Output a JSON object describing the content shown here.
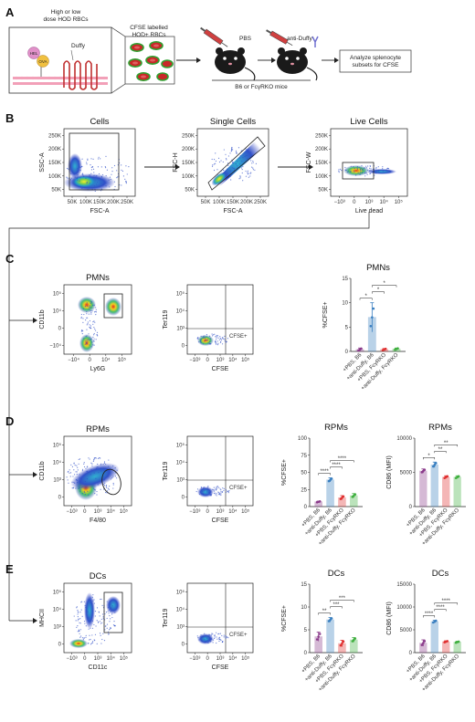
{
  "panels": {
    "A": {
      "label": "A",
      "rbc_text": "High or low\ndose HOD RBCs",
      "hel": "HEL",
      "ova": "OVA",
      "duffy": "Duffy",
      "cfse_text": "CFSE labelled\nHOD+ RBCs",
      "pbs": "PBS",
      "anti_duffy": "anti-Duffy",
      "mice": "B6 or FcγRKO mice",
      "analyze": "Analyze splenocyte\nsubsets for CFSE"
    },
    "B": {
      "label": "B",
      "plots": [
        {
          "title": "Cells",
          "xlabel": "FSC-A",
          "ylabel": "SSC-A",
          "xticks": [
            "50K",
            "100K",
            "150K",
            "200K",
            "250K"
          ],
          "yticks": [
            "250K",
            "200K",
            "150K",
            "100K",
            "50K"
          ]
        },
        {
          "title": "Single Cells",
          "xlabel": "FSC-A",
          "ylabel": "FSC-H",
          "xticks": [
            "50K",
            "100K",
            "150K",
            "200K",
            "250K"
          ],
          "yticks": [
            "250K",
            "200K",
            "150K",
            "100K",
            "50K"
          ]
        },
        {
          "title": "Live Cells",
          "xlabel": "Live dead",
          "ylabel": "FSC-W",
          "xticks": [
            "−10³",
            "0",
            "10³",
            "10⁴",
            "10⁵"
          ],
          "yticks": [
            "250K",
            "200K",
            "150K",
            "100K",
            "50K"
          ]
        }
      ]
    },
    "C": {
      "label": "C",
      "gate_plot": {
        "title": "PMNs",
        "xlabel": "Ly6G",
        "ylabel": "CD11b",
        "xticks": [
          "−10⁴",
          "0",
          "10⁴",
          "10⁵"
        ],
        "yticks": [
          "10⁵",
          "10⁴",
          "0",
          "−10⁴"
        ]
      },
      "cfse_plot": {
        "xlabel": "CFSE",
        "ylabel": "Ter119",
        "gate_label": "CFSE+",
        "xticks": [
          "−10³",
          "0",
          "10³",
          "10⁴",
          "10⁵"
        ],
        "yticks": [
          "10⁵",
          "10⁴",
          "10³",
          "0"
        ]
      }
    },
    "D": {
      "label": "D",
      "gate_plot": {
        "title": "RPMs",
        "xlabel": "F4/80",
        "ylabel": "CD11b",
        "xticks": [
          "−10³",
          "0",
          "10³",
          "10⁴",
          "10⁵"
        ],
        "yticks": [
          "10⁵",
          "10⁴",
          "10³",
          "0"
        ]
      },
      "cfse_plot": {
        "xlabel": "CFSE",
        "ylabel": "Ter119",
        "gate_label": "CFSE+",
        "xticks": [
          "−10³",
          "0",
          "10³",
          "10⁴",
          "10⁵"
        ],
        "yticks": [
          "10⁵",
          "10⁴",
          "10³",
          "0"
        ]
      }
    },
    "E": {
      "label": "E",
      "gate_plot": {
        "title": "DCs",
        "xlabel": "CD11c",
        "ylabel": "MHCII",
        "xticks": [
          "−10³",
          "0",
          "10³",
          "10⁴",
          "10⁵"
        ],
        "yticks": [
          "10⁵",
          "10⁴",
          "10³",
          "0"
        ]
      },
      "cfse_plot": {
        "xlabel": "CFSE",
        "ylabel": "Ter119",
        "gate_label": "CFSE+",
        "xticks": [
          "−10³",
          "0",
          "10³",
          "10⁴",
          "10⁵"
        ],
        "yticks": [
          "10⁵",
          "10⁴",
          "10³",
          "0"
        ]
      }
    }
  },
  "colors": {
    "b6_pbs": "#8a3a8a",
    "b6_anti": "#3a7fc0",
    "ko_pbs": "#e03030",
    "ko_anti": "#40b040"
  },
  "chart_data": [
    {
      "type": "bar",
      "panel": "C",
      "title": "PMNs",
      "ylabel": "%CFSE+",
      "categories": [
        "+PBS, B6",
        "+anti-Duffy, B6",
        "+PBS, FcγRKO",
        "+anti-Duffy, FcγRKO"
      ],
      "values": [
        0.4,
        7.0,
        0.4,
        0.5
      ],
      "errors": [
        0.3,
        3.0,
        0.2,
        0.2
      ],
      "ylim": [
        0,
        15
      ],
      "yticks": [
        0,
        5,
        10,
        15
      ],
      "significance": [
        {
          "from": 0,
          "to": 1,
          "label": "*"
        },
        {
          "from": 1,
          "to": 2,
          "label": "*"
        },
        {
          "from": 1,
          "to": 3,
          "label": "*"
        }
      ]
    },
    {
      "type": "bar",
      "panel": "D",
      "title": "RPMs",
      "ylabel": "%CFSE+",
      "categories": [
        "+PBS, B6",
        "+anti-Duffy, B6",
        "+PBS, FcγRKO",
        "+anti-Duffy, FcγRKO"
      ],
      "values": [
        7,
        39,
        13,
        16
      ],
      "errors": [
        1,
        3,
        3,
        3
      ],
      "ylim": [
        0,
        100
      ],
      "yticks": [
        0,
        25,
        50,
        75,
        100
      ],
      "significance": [
        {
          "from": 0,
          "to": 1,
          "label": "****"
        },
        {
          "from": 1,
          "to": 2,
          "label": "****"
        },
        {
          "from": 1,
          "to": 3,
          "label": "****"
        }
      ]
    },
    {
      "type": "bar",
      "panel": "D",
      "title": "RPMs",
      "ylabel": "CD86 (MFI)",
      "categories": [
        "+PBS, B6",
        "+anti-Duffy, B6",
        "+PBS, FcγRKO",
        "+anti-Duffy, FcγRKO"
      ],
      "values": [
        5200,
        6100,
        4300,
        4300
      ],
      "errors": [
        300,
        400,
        200,
        200
      ],
      "ylim": [
        0,
        10000
      ],
      "yticks": [
        0,
        5000,
        10000
      ],
      "significance": [
        {
          "from": 0,
          "to": 1,
          "label": "*"
        },
        {
          "from": 1,
          "to": 2,
          "label": "**"
        },
        {
          "from": 1,
          "to": 3,
          "label": "**"
        }
      ]
    },
    {
      "type": "bar",
      "panel": "E",
      "title": "DCs",
      "ylabel": "%CFSE+",
      "categories": [
        "+PBS, B6",
        "+anti-Duffy, B6",
        "+PBS, FcγRKO",
        "+anti-Duffy, FcγRKO"
      ],
      "values": [
        3.5,
        7.2,
        2.0,
        2.8
      ],
      "errors": [
        1.0,
        0.5,
        0.7,
        0.5
      ],
      "ylim": [
        0,
        15
      ],
      "yticks": [
        0,
        5,
        10,
        15
      ],
      "significance": [
        {
          "from": 0,
          "to": 1,
          "label": "**"
        },
        {
          "from": 1,
          "to": 2,
          "label": "***"
        },
        {
          "from": 1,
          "to": 3,
          "label": "***"
        }
      ]
    },
    {
      "type": "bar",
      "panel": "E",
      "title": "DCs",
      "ylabel": "CD86 (MFI)",
      "categories": [
        "+PBS, B6",
        "+anti-Duffy, B6",
        "+PBS, FcγRKO",
        "+anti-Duffy, FcγRKO"
      ],
      "values": [
        2100,
        6800,
        2400,
        2300
      ],
      "errors": [
        700,
        300,
        200,
        200
      ],
      "ylim": [
        0,
        15000
      ],
      "yticks": [
        0,
        5000,
        10000,
        15000
      ],
      "significance": [
        {
          "from": 0,
          "to": 1,
          "label": "****"
        },
        {
          "from": 1,
          "to": 2,
          "label": "****"
        },
        {
          "from": 1,
          "to": 3,
          "label": "****"
        }
      ]
    }
  ]
}
